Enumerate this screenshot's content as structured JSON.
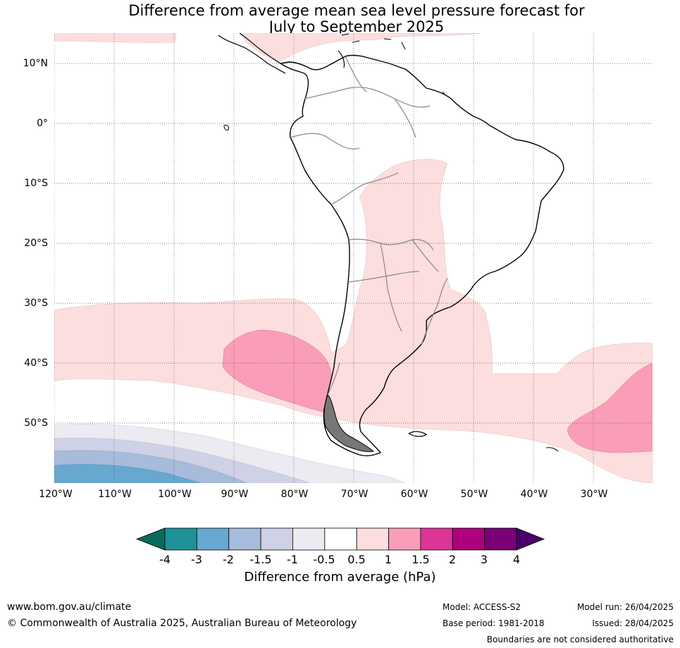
{
  "title": {
    "line1": "Difference from average mean sea level pressure forecast for",
    "line2": "July to September 2025"
  },
  "map": {
    "lat_labels": [
      "10°N",
      "0°",
      "10°S",
      "20°S",
      "30°S",
      "40°S",
      "50°S"
    ],
    "lon_labels": [
      "120°W",
      "110°W",
      "100°W",
      "90°W",
      "80°W",
      "70°W",
      "60°W",
      "50°W",
      "40°W",
      "30°W"
    ]
  },
  "colorbar": {
    "labels": [
      "-4",
      "-3",
      "-2",
      "-1.5",
      "-1",
      "-0.5",
      "0.5",
      "1",
      "1.5",
      "2",
      "3",
      "4"
    ],
    "colors": [
      "#0a6b5c",
      "#1f9199",
      "#66a8cf",
      "#a7bbdb",
      "#cfd1e6",
      "#ecebf1",
      "#ffffff",
      "#fddede",
      "#f99db8",
      "#dd3497",
      "#ae017e",
      "#7a0177",
      "#49006a"
    ],
    "title": "Difference from average (hPa)"
  },
  "footer": {
    "website": "www.bom.gov.au/climate",
    "copyright": "© Commonwealth of Australia 2025, Australian Bureau of Meteorology",
    "model": "Model: ACCESS-S2",
    "base_period": "Base period: 1981-2018",
    "model_run": "Model run: 26/04/2025",
    "issued": "Issued: 28/04/2025",
    "disclaimer": "Boundaries are not considered authoritative"
  }
}
